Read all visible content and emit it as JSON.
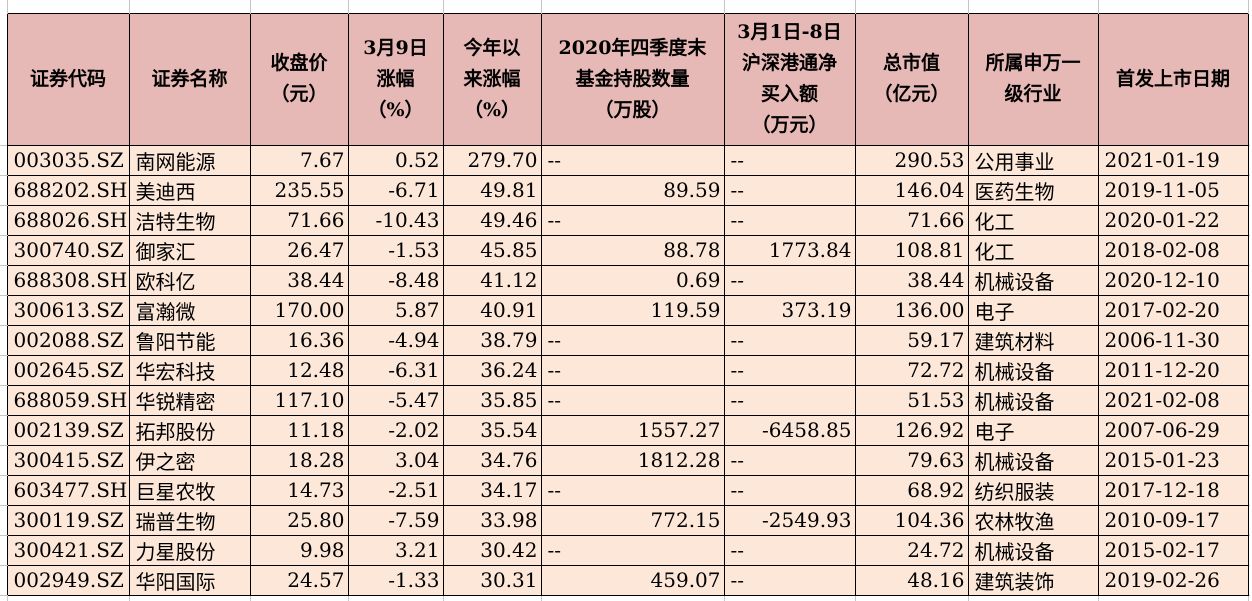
{
  "colors": {
    "header_bg": "#e7b9b6",
    "row_bg": "#fce7d9",
    "border": "#000000",
    "gridline": "#c6c6c6",
    "text": "#000000"
  },
  "table": {
    "headers": [
      "证券代码",
      "证券名称",
      "收盘价\n（元）",
      "3月9日\n涨幅\n（%）",
      "今年以\n来涨幅\n（%）",
      "2020年四季度末\n基金持股数量\n（万股）",
      "3月1日-8日\n沪深港通净\n买入额\n（万元）",
      "总市值\n（亿元）",
      "所属申万一\n级行业",
      "首发上市日期"
    ],
    "rows": [
      [
        "003035.SZ",
        "南网能源",
        "7.67",
        "0.52",
        "279.70",
        "--",
        "--",
        "290.53",
        "公用事业",
        "2021-01-19"
      ],
      [
        "688202.SH",
        "美迪西",
        "235.55",
        "-6.71",
        "49.81",
        "89.59",
        "--",
        "146.04",
        "医药生物",
        "2019-11-05"
      ],
      [
        "688026.SH",
        "洁特生物",
        "71.66",
        "-10.43",
        "49.46",
        "--",
        "--",
        "71.66",
        "化工",
        "2020-01-22"
      ],
      [
        "300740.SZ",
        "御家汇",
        "26.47",
        "-1.53",
        "45.85",
        "88.78",
        "1773.84",
        "108.81",
        "化工",
        "2018-02-08"
      ],
      [
        "688308.SH",
        "欧科亿",
        "38.44",
        "-8.48",
        "41.12",
        "0.69",
        "--",
        "38.44",
        "机械设备",
        "2020-12-10"
      ],
      [
        "300613.SZ",
        "富瀚微",
        "170.00",
        "5.87",
        "40.91",
        "119.59",
        "373.19",
        "136.00",
        "电子",
        "2017-02-20"
      ],
      [
        "002088.SZ",
        "鲁阳节能",
        "16.36",
        "-4.94",
        "38.79",
        "--",
        "--",
        "59.17",
        "建筑材料",
        "2006-11-30"
      ],
      [
        "002645.SZ",
        "华宏科技",
        "12.48",
        "-6.31",
        "36.24",
        "--",
        "--",
        "72.72",
        "机械设备",
        "2011-12-20"
      ],
      [
        "688059.SH",
        "华锐精密",
        "117.10",
        "-5.47",
        "35.85",
        "--",
        "--",
        "51.53",
        "机械设备",
        "2021-02-08"
      ],
      [
        "002139.SZ",
        "拓邦股份",
        "11.18",
        "-2.02",
        "35.54",
        "1557.27",
        "-6458.85",
        "126.92",
        "电子",
        "2007-06-29"
      ],
      [
        "300415.SZ",
        "伊之密",
        "18.28",
        "3.04",
        "34.76",
        "1812.28",
        "--",
        "79.63",
        "机械设备",
        "2015-01-23"
      ],
      [
        "603477.SH",
        "巨星农牧",
        "14.73",
        "-2.51",
        "34.17",
        "--",
        "--",
        "68.92",
        "纺织服装",
        "2017-12-18"
      ],
      [
        "300119.SZ",
        "瑞普生物",
        "25.80",
        "-7.59",
        "33.98",
        "772.15",
        "-2549.93",
        "104.36",
        "农林牧渔",
        "2010-09-17"
      ],
      [
        "300421.SZ",
        "力星股份",
        "9.98",
        "3.21",
        "30.42",
        "--",
        "--",
        "24.72",
        "机械设备",
        "2015-02-17"
      ],
      [
        "002949.SZ",
        "华阳国际",
        "24.57",
        "-1.33",
        "30.31",
        "459.07",
        "--",
        "48.16",
        "建筑装饰",
        "2019-02-26"
      ]
    ],
    "column_alignments": [
      "left",
      "left",
      "right",
      "right",
      "right",
      "right",
      "right",
      "right",
      "left",
      "left"
    ]
  }
}
